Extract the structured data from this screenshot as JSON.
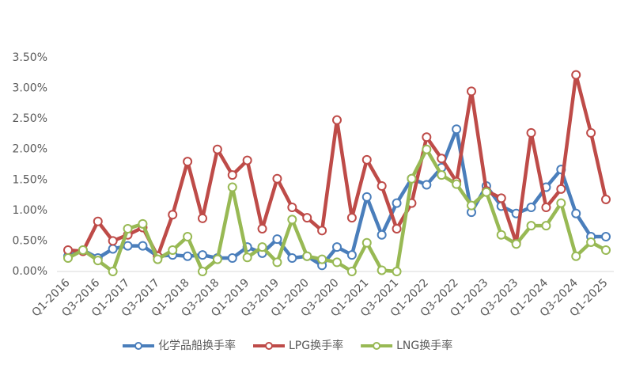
{
  "chart_data": {
    "type": "line",
    "categories": [
      "Q1-2016",
      null,
      "Q3-2016",
      null,
      "Q1-2017",
      null,
      "Q3-2017",
      null,
      "Q1-2018",
      null,
      "Q3-2018",
      null,
      "Q1-2019",
      null,
      "Q3-2019",
      null,
      "Q1-2020",
      null,
      "Q3-2020",
      null,
      "Q1-2021",
      null,
      "Q3-2021",
      null,
      "Q1-2022",
      null,
      "Q3-2022",
      null,
      "Q1-2023",
      null,
      "Q3-2023",
      null,
      "Q1-2024",
      null,
      "Q3-2024",
      null,
      "Q1-2025"
    ],
    "series": [
      {
        "name": "化学品船换手率",
        "color": "#4a7ebb",
        "values": [
          0.25,
          0.35,
          0.22,
          0.37,
          0.42,
          0.42,
          0.25,
          0.27,
          0.25,
          0.27,
          0.22,
          0.22,
          0.4,
          0.3,
          0.53,
          0.22,
          0.25,
          0.1,
          0.4,
          0.27,
          1.22,
          0.6,
          1.12,
          1.52,
          1.42,
          1.7,
          2.33,
          0.97,
          1.4,
          1.07,
          0.95,
          1.05,
          1.38,
          1.67,
          0.95,
          0.57,
          0.57
        ]
      },
      {
        "name": "LPG换手率",
        "color": "#be4b48",
        "values": [
          0.35,
          0.33,
          0.82,
          0.5,
          0.6,
          0.72,
          0.25,
          0.93,
          1.8,
          0.87,
          2.0,
          1.58,
          1.82,
          0.7,
          1.52,
          1.05,
          0.88,
          0.67,
          2.48,
          0.88,
          1.83,
          1.4,
          0.7,
          1.12,
          2.2,
          1.85,
          1.47,
          2.95,
          1.32,
          1.2,
          0.47,
          2.27,
          1.05,
          1.35,
          3.22,
          2.27,
          1.18
        ]
      },
      {
        "name": "LNG换手率",
        "color": "#98b954",
        "values": [
          0.22,
          0.35,
          0.18,
          0.0,
          0.7,
          0.78,
          0.2,
          0.35,
          0.57,
          0.0,
          0.2,
          1.38,
          0.23,
          0.4,
          0.15,
          0.85,
          0.25,
          0.2,
          0.15,
          0.0,
          0.47,
          0.02,
          0.0,
          1.52,
          2.0,
          1.58,
          1.43,
          1.08,
          1.3,
          0.6,
          0.45,
          0.75,
          0.75,
          1.12,
          0.25,
          0.48,
          0.35
        ]
      }
    ],
    "ylim": [
      0,
      3.5
    ],
    "yticks": [
      {
        "value": 0,
        "label": "0.00%"
      },
      {
        "value": 0.5,
        "label": "0.50%"
      },
      {
        "value": 1,
        "label": "1.00%"
      },
      {
        "value": 1.5,
        "label": "1.50%"
      },
      {
        "value": 2,
        "label": "2.00%"
      },
      {
        "value": 2.5,
        "label": "2.50%"
      },
      {
        "value": 3,
        "label": "3.00%"
      },
      {
        "value": 3.5,
        "label": "3.50%"
      }
    ],
    "legend": "bottom"
  }
}
